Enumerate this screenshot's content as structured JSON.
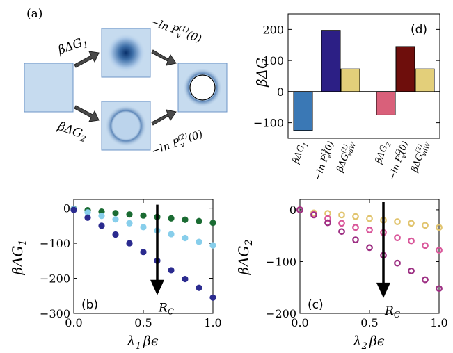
{
  "panel_labels": {
    "a": "(a)",
    "b": "(b)",
    "c": "(c)",
    "d": "(d)"
  },
  "schematic": {
    "upper_left_label": "βΔG",
    "upper_left_sub": "1",
    "lower_left_label": "βΔG",
    "lower_left_sub": "2",
    "upper_right_label": "−ln P",
    "upper_right_sup": "(1)",
    "upper_right_sub": "v",
    "upper_right_arg": "(0)",
    "lower_right_label": "−ln P",
    "lower_right_sup": "(2)",
    "lower_right_sub": "v",
    "lower_right_arg": "(0)"
  },
  "colors": {
    "box_fill": "#c6dbef",
    "box_stroke": "#6d94c7",
    "arrow": "#4a4a4a",
    "blob_dark": "#08306b",
    "bar_dG1": "#3a78b5",
    "bar_P1": "#2c1f85",
    "bar_vdw": "#e3cf7a",
    "bar_dG2": "#d9607a",
    "bar_P2": "#6e0e0c",
    "dark_green": "#1a6b32",
    "light_blue": "#87ceeb",
    "navy": "#2b2b8f",
    "gold": "#e1c46e",
    "pink": "#d9569a",
    "magenta": "#9d2f83"
  },
  "chart_data": [
    {
      "id": "b",
      "type": "scatter",
      "xlabel": "λ",
      "xlabel_sub": "1",
      "xlabel_suffix": "βϵ",
      "ylabel": "βΔG",
      "ylabel_sub": "1",
      "xlim": [
        0,
        1
      ],
      "ylim": [
        -300,
        25
      ],
      "xticks": [
        0.0,
        0.5,
        1.0
      ],
      "xtick_labels": [
        "0.0",
        "0.5",
        "1.0"
      ],
      "yticks": [
        0,
        -100,
        -200,
        -300
      ],
      "ytick_labels": [
        "0",
        "−100",
        "−200",
        "−300"
      ],
      "marker": "filled",
      "x": [
        0.0,
        0.1,
        0.2,
        0.3,
        0.4,
        0.5,
        0.6,
        0.7,
        0.8,
        0.9,
        1.0
      ],
      "series": [
        {
          "color_key": "dark_green",
          "values": [
            -2,
            -6,
            -10,
            -14,
            -18,
            -21,
            -25,
            -29,
            -33,
            -37,
            -42
          ]
        },
        {
          "color_key": "light_blue",
          "values": [
            -3,
            -12,
            -22,
            -32,
            -43,
            -54,
            -64,
            -74,
            -85,
            -96,
            -106
          ]
        },
        {
          "color_key": "navy",
          "values": [
            -5,
            -27,
            -50,
            -75,
            -100,
            -125,
            -150,
            -177,
            -202,
            -227,
            -255
          ]
        }
      ],
      "arrow": {
        "x": 0.6,
        "y_from": 10,
        "y_to": -240,
        "label": "R",
        "label_sub": "C"
      }
    },
    {
      "id": "c",
      "type": "scatter",
      "xlabel": "λ",
      "xlabel_sub": "2",
      "xlabel_suffix": "βϵ",
      "ylabel": "βΔG",
      "ylabel_sub": "2",
      "xlim": [
        0,
        1
      ],
      "ylim": [
        -200,
        20
      ],
      "xticks": [
        0.0,
        0.5,
        1.0
      ],
      "xtick_labels": [
        "0.0",
        "0.5",
        "1.0"
      ],
      "yticks": [
        0,
        -100,
        -200
      ],
      "ytick_labels": [
        "0",
        "−100",
        "−200"
      ],
      "marker": "open",
      "x": [
        0.0,
        0.1,
        0.2,
        0.3,
        0.4,
        0.5,
        0.6,
        0.7,
        0.8,
        0.9,
        1.0
      ],
      "series": [
        {
          "color_key": "gold",
          "values": [
            0,
            -6,
            -7,
            -10,
            -13,
            -17,
            -20,
            -23,
            -26,
            -30,
            -34
          ]
        },
        {
          "color_key": "pink",
          "values": [
            0,
            -9,
            -17,
            -26,
            -34,
            -39,
            -44,
            -54,
            -60,
            -69,
            -78
          ]
        },
        {
          "color_key": "magenta",
          "values": [
            0,
            -10,
            -25,
            -42,
            -58,
            -73,
            -88,
            -103,
            -118,
            -135,
            -152
          ]
        }
      ],
      "arrow": {
        "x": 0.6,
        "y_from": 15,
        "y_to": -165,
        "label": "R",
        "label_sub": "C"
      }
    },
    {
      "id": "d",
      "type": "bar",
      "ylabel": "βΔG",
      "ylim": [
        -150,
        250
      ],
      "yticks": [
        200,
        100,
        0,
        -100
      ],
      "ytick_labels": [
        "200",
        "100",
        "0",
        "−100"
      ],
      "bars": [
        {
          "value": -125,
          "color_key": "bar_dG1"
        },
        {
          "value": 197,
          "color_key": "bar_P1"
        },
        {
          "value": 73,
          "color_key": "bar_vdw"
        },
        {
          "value": -75,
          "color_key": "bar_dG2"
        },
        {
          "value": 145,
          "color_key": "bar_P2"
        },
        {
          "value": 73,
          "color_key": "bar_vdw"
        }
      ],
      "category_labels": [
        {
          "main": "βΔG",
          "sub": "1",
          "sup": ""
        },
        {
          "main": "−ln P",
          "sub": "v",
          "sup": "(1)",
          "tail": "(0)"
        },
        {
          "main": "βΔG",
          "sub": "vdW",
          "sup": "(1)"
        },
        {
          "main": "βΔG",
          "sub": "2",
          "sup": ""
        },
        {
          "main": "−ln P",
          "sub": "v",
          "sup": "(2)",
          "tail": "(0)"
        },
        {
          "main": "βΔG",
          "sub": "vdW",
          "sup": "(2)"
        }
      ]
    }
  ]
}
